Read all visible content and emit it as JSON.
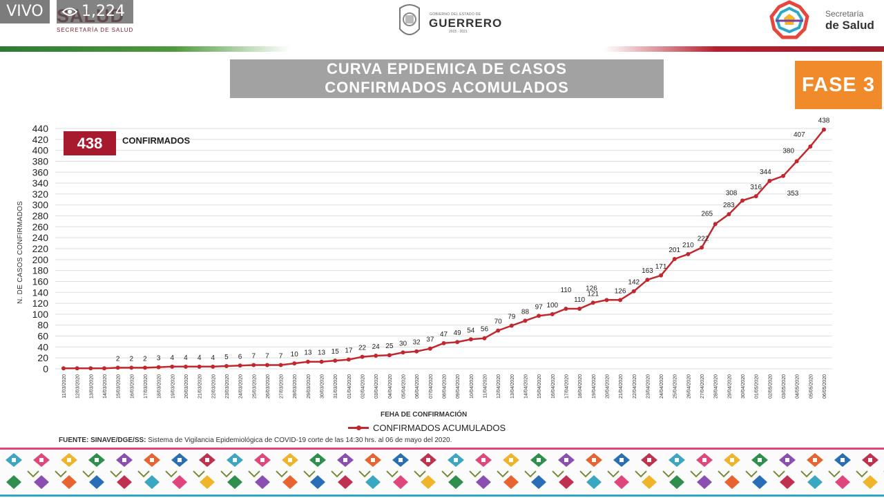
{
  "live": {
    "label": "VIVO",
    "viewers": "1,224",
    "viewers_icon": "eye-icon"
  },
  "header": {
    "left_logo_text": "SALUD",
    "left_logo_sub": "SECRETARÍA DE SALUD",
    "center_small": "GOBIERNO DEL ESTADO DE",
    "center_name": "GUERRERO",
    "center_years": "2015 - 2021",
    "right_label": "Secretaría",
    "right_name": "de Salud"
  },
  "title_lines": [
    "CURVA EPIDEMICA DE CASOS",
    "CONFIRMADOS  ACOMULADOS"
  ],
  "phase_badge": "FASE 3",
  "summary": {
    "count": "438",
    "label": "CONFIRMADOS"
  },
  "source_note": {
    "prefix": "FUENTE: SINAVE/DGE/SS:",
    "text": " Sistema de Vigilancia Epidemiológica de COVID-19 corte de las 14:30 hrs. al 06 de mayo del 2020."
  },
  "colors": {
    "line": "#c1272d",
    "badge_red": "#a7192d",
    "phase_orange": "#f08a2b",
    "title_gray": "#a2a2a2"
  },
  "chart_data": {
    "type": "line",
    "ylabel": "N. DE CASOS CONFIRMADOS",
    "xlabel": "FEHA DE CONFIRMACIÓN",
    "ylim": [
      0,
      440
    ],
    "yticks": [
      0,
      20,
      40,
      60,
      80,
      100,
      120,
      140,
      160,
      180,
      200,
      220,
      240,
      260,
      280,
      300,
      320,
      340,
      360,
      380,
      400,
      420,
      440
    ],
    "grid": true,
    "legend_position": "bottom-center",
    "series": [
      {
        "name": "CONFIRMADOS ACUMULADOS",
        "x": [
          "11/03/2020",
          "12/03/2020",
          "13/03/2020",
          "14/03/2020",
          "15/03/2020",
          "16/03/2020",
          "17/03/2020",
          "18/03/2020",
          "19/03/2020",
          "20/03/2020",
          "21/03/2020",
          "22/03/2020",
          "23/03/2020",
          "24/03/2020",
          "25/03/2020",
          "26/03/2020",
          "27/03/2020",
          "28/03/2020",
          "29/03/2020",
          "30/03/2020",
          "31/03/2020",
          "01/04/2020",
          "02/04/2020",
          "03/04/2020",
          "04/04/2020",
          "05/04/2020",
          "06/04/2020",
          "07/04/2020",
          "08/04/2020",
          "09/04/2020",
          "10/04/2020",
          "11/04/2020",
          "12/04/2020",
          "13/04/2020",
          "14/04/2020",
          "15/04/2020",
          "16/04/2020",
          "17/04/2020",
          "18/04/2020",
          "19/04/2020",
          "20/04/2020",
          "21/04/2020",
          "22/04/2020",
          "23/04/2020",
          "24/04/2020",
          "25/04/2020",
          "26/04/2020",
          "27/04/2020",
          "28/04/2020",
          "29/04/2020",
          "30/04/2020",
          "01/05/2020",
          "02/05/2020",
          "03/05/2020",
          "04/05/2020",
          "05/05/2020",
          "06/05/2020"
        ],
        "values": [
          1,
          1,
          1,
          1,
          2,
          2,
          2,
          3,
          4,
          4,
          4,
          4,
          5,
          6,
          7,
          7,
          7,
          10,
          13,
          13,
          15,
          17,
          22,
          24,
          25,
          30,
          32,
          37,
          47,
          49,
          54,
          56,
          70,
          79,
          88,
          97,
          100,
          110,
          110,
          121,
          126,
          126,
          142,
          163,
          171,
          201,
          210,
          222,
          265,
          283,
          308,
          316,
          344,
          353,
          380,
          407,
          438
        ],
        "labels": [
          "",
          "",
          "",
          "",
          "2",
          "2",
          "2",
          "3",
          "4",
          "4",
          "4",
          "4",
          "5",
          "6",
          "7",
          "7",
          "7",
          "10",
          "13",
          "13",
          "15",
          "17",
          "22",
          "24",
          "25",
          "30",
          "32",
          "37",
          "47",
          "49",
          "54",
          "56",
          "70",
          "79",
          "88",
          "97",
          "100",
          "110",
          "110",
          "121",
          "126",
          "126",
          "142",
          "163",
          "171",
          "201",
          "210",
          "222",
          "265",
          "283",
          "308",
          "316",
          "344",
          "353",
          "380",
          "407",
          "438"
        ]
      }
    ]
  }
}
